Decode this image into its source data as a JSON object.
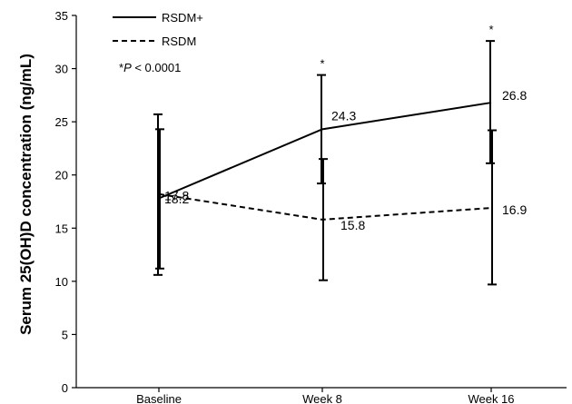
{
  "chart_data": {
    "type": "line",
    "categories": [
      "Baseline",
      "Week 8",
      "Week 16"
    ],
    "ylabel": "Serum 25(OH)D concentration (ng/mL)",
    "xlabel": "",
    "ylim": [
      0,
      35
    ],
    "yticks": [
      0,
      5,
      10,
      15,
      20,
      25,
      30,
      35
    ],
    "grid": false,
    "legend_position": "top-left",
    "annotation": {
      "prefix": "*",
      "italic": "P",
      "suffix": " < 0.0001"
    },
    "significance_marker": "*",
    "series": [
      {
        "name": "RSDM+",
        "line_style": "solid",
        "values": [
          17.8,
          24.3,
          26.8
        ],
        "labels": [
          "17.8",
          "24.3",
          "26.8"
        ],
        "error_low": [
          10.6,
          19.2,
          21.1
        ],
        "error_high": [
          25.7,
          29.4,
          32.6
        ],
        "significant": [
          false,
          true,
          true
        ]
      },
      {
        "name": "RSDM",
        "line_style": "dashed",
        "values": [
          18.2,
          15.8,
          16.9
        ],
        "labels": [
          "18.2",
          "15.8",
          "16.9"
        ],
        "error_low": [
          11.2,
          10.1,
          9.7
        ],
        "error_high": [
          24.3,
          21.5,
          24.2
        ],
        "significant": [
          false,
          false,
          false
        ]
      }
    ]
  }
}
